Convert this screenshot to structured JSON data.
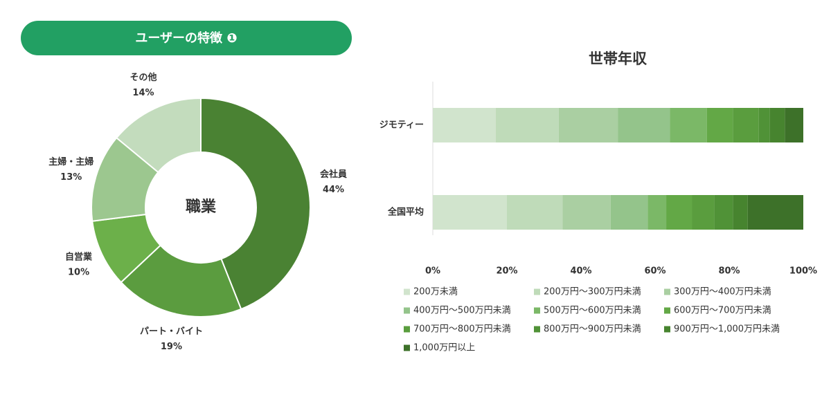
{
  "header": {
    "title": "ユーザーの特徴 ❶"
  },
  "chart_data": [
    {
      "type": "donut",
      "center_label": "職業",
      "categories": [
        "会社員",
        "パート・バイト",
        "自営業",
        "主婦・主婦",
        "その他"
      ],
      "values": [
        44,
        19,
        10,
        13,
        14
      ],
      "value_labels": [
        "44%",
        "19%",
        "10%",
        "13%",
        "14%"
      ],
      "colors": [
        "#4a8233",
        "#5b9c3f",
        "#6cb04a",
        "#9cc78f",
        "#c3dcbd"
      ]
    },
    {
      "type": "stacked_bar",
      "orientation": "horizontal",
      "title": "世帯年収",
      "categories": [
        "ジモティー",
        "全国平均"
      ],
      "xlim": [
        0,
        100
      ],
      "xticks": [
        {
          "value": 0,
          "label": "0%"
        },
        {
          "value": 20,
          "label": "20%"
        },
        {
          "value": 40,
          "label": "40%"
        },
        {
          "value": 60,
          "label": "60%"
        },
        {
          "value": 80,
          "label": "80%"
        },
        {
          "value": 100,
          "label": "100%"
        }
      ],
      "series": [
        {
          "name": "200万未満",
          "color": "#d1e4cd",
          "values": [
            17,
            20
          ]
        },
        {
          "name": "200万円〜300万円未満",
          "color": "#bfdbb9",
          "values": [
            17,
            15
          ]
        },
        {
          "name": "300万円〜400万円未満",
          "color": "#aacfa2",
          "values": [
            16,
            13
          ]
        },
        {
          "name": "400万円〜500万円未満",
          "color": "#94c48b",
          "values": [
            14,
            10
          ]
        },
        {
          "name": "500万円〜600万円未満",
          "color": "#7bb867",
          "values": [
            10,
            5
          ]
        },
        {
          "name": "600万円〜700万円未満",
          "color": "#63a846",
          "values": [
            7,
            7
          ]
        },
        {
          "name": "700万円〜800万円未満",
          "color": "#5a9d3e",
          "values": [
            7,
            6
          ]
        },
        {
          "name": "800万円〜900万円未満",
          "color": "#509237",
          "values": [
            3,
            5
          ]
        },
        {
          "name": "900万円〜1,000万円未満",
          "color": "#47842f",
          "values": [
            4,
            4
          ]
        },
        {
          "name": "1,000万円以上",
          "color": "#3d7129",
          "values": [
            5,
            15
          ]
        }
      ]
    }
  ]
}
